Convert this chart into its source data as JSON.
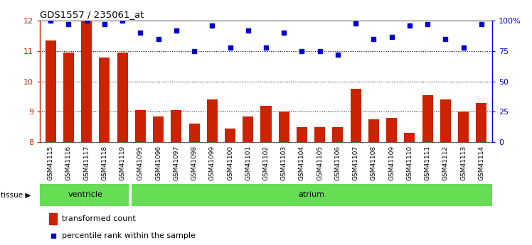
{
  "title": "GDS1557 / 235061_at",
  "categories": [
    "GSM41115",
    "GSM41116",
    "GSM41117",
    "GSM41118",
    "GSM41119",
    "GSM41095",
    "GSM41096",
    "GSM41097",
    "GSM41098",
    "GSM41099",
    "GSM41100",
    "GSM41101",
    "GSM41102",
    "GSM41103",
    "GSM41104",
    "GSM41105",
    "GSM41106",
    "GSM41107",
    "GSM41108",
    "GSM41109",
    "GSM41110",
    "GSM41111",
    "GSM41112",
    "GSM41113",
    "GSM41114"
  ],
  "bar_values": [
    11.35,
    10.95,
    12.0,
    10.8,
    10.95,
    9.05,
    8.85,
    9.05,
    8.6,
    9.4,
    8.45,
    8.85,
    9.2,
    9.0,
    8.5,
    8.5,
    8.5,
    9.75,
    8.75,
    8.8,
    8.3,
    9.55,
    9.4,
    9.0,
    9.3
  ],
  "percentile_right_values": [
    100,
    97,
    100,
    97,
    100,
    90,
    85,
    92,
    75,
    96,
    78,
    92,
    78,
    90,
    75,
    75,
    72,
    98,
    85,
    87,
    96,
    97,
    85,
    78,
    97
  ],
  "bar_color": "#cc2200",
  "dot_color": "#0000cc",
  "ylim_left": [
    8,
    12
  ],
  "ylim_right": [
    0,
    100
  ],
  "yticks_left": [
    8,
    9,
    10,
    11,
    12
  ],
  "yticks_right": [
    0,
    25,
    50,
    75,
    100
  ],
  "ytick_labels_right": [
    "0",
    "25",
    "50",
    "75",
    "100%"
  ],
  "ventricle_samples": 5,
  "total_samples": 25,
  "tissue_label": "tissue",
  "ventricle_label": "ventricle",
  "atrium_label": "atrium",
  "legend_bar_label": "transformed count",
  "legend_dot_label": "percentile rank within the sample",
  "bar_width": 0.6,
  "background_color": "#ffffff",
  "tissue_row_color": "#66dd55",
  "xtick_bg_color": "#c8c8c8"
}
